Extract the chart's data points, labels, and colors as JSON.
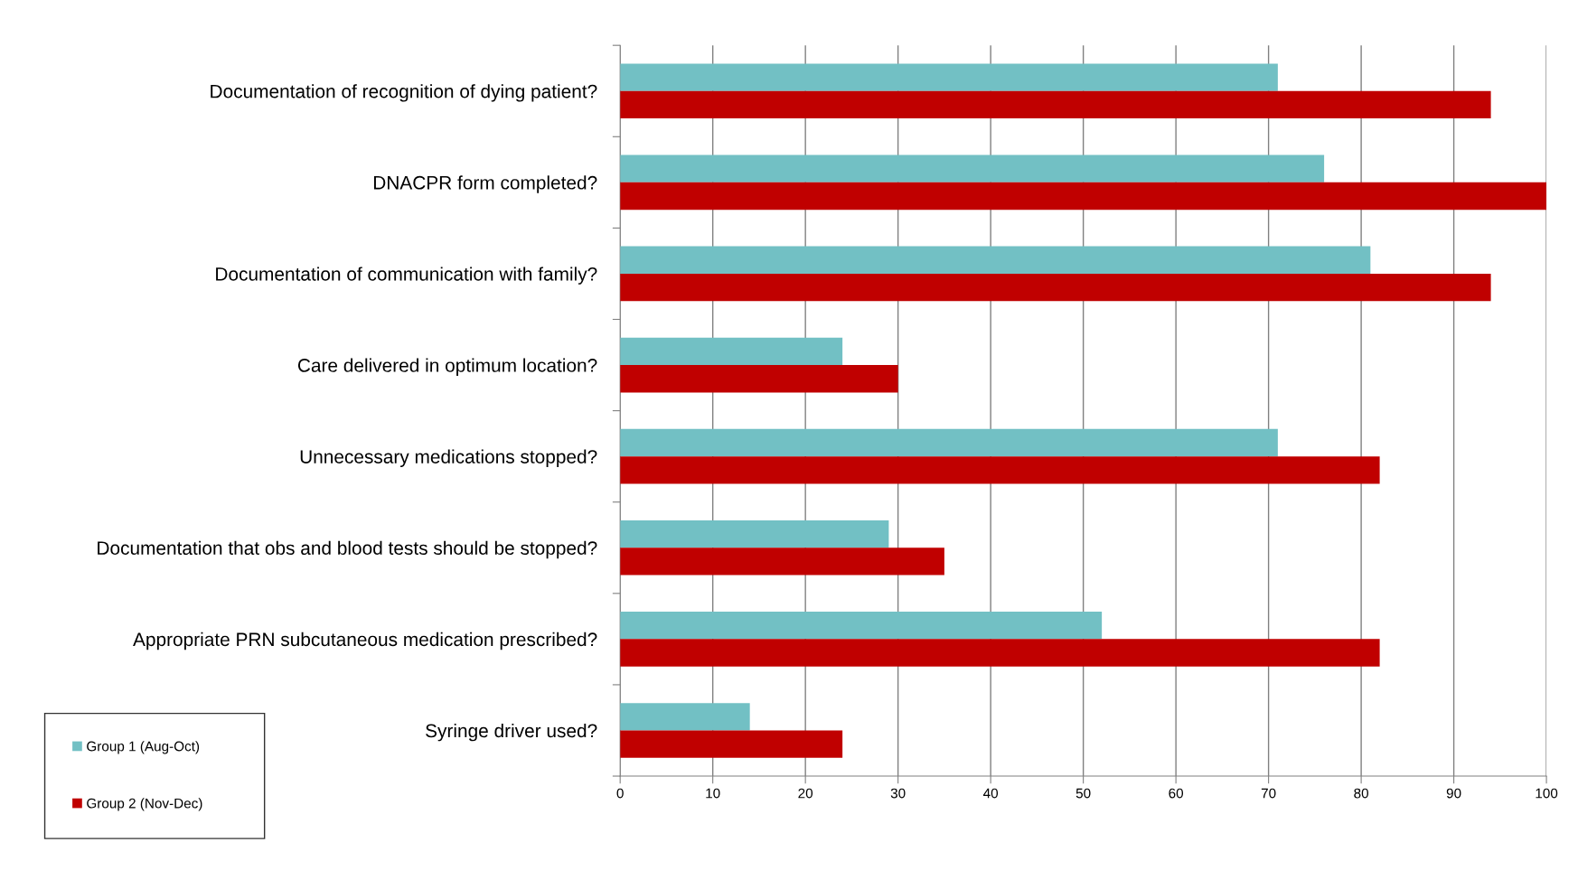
{
  "chart_data": {
    "type": "bar",
    "orientation": "horizontal",
    "categories": [
      "Documentation of recognition of dying patient?",
      "DNACPR form completed?",
      "Documentation of communication with family?",
      "Care delivered in optimum location?",
      "Unnecessary medications stopped?",
      "Documentation that obs and blood tests should be stopped?",
      "Appropriate PRN subcutaneous medication prescribed?",
      "Syringe driver used?"
    ],
    "series": [
      {
        "name": "Group 1 (Aug-Oct)",
        "color": "#72c0c4",
        "values": [
          71,
          76,
          81,
          24,
          71,
          29,
          52,
          14
        ]
      },
      {
        "name": "Group 2 (Nov-Dec)",
        "color": "#c00000",
        "values": [
          94,
          100,
          94,
          30,
          82,
          35,
          82,
          24
        ]
      }
    ],
    "xlim": [
      0,
      100
    ],
    "xticks": [
      0,
      10,
      20,
      30,
      40,
      50,
      60,
      70,
      80,
      90,
      100
    ],
    "grid": "x",
    "legend": "bottom left"
  }
}
